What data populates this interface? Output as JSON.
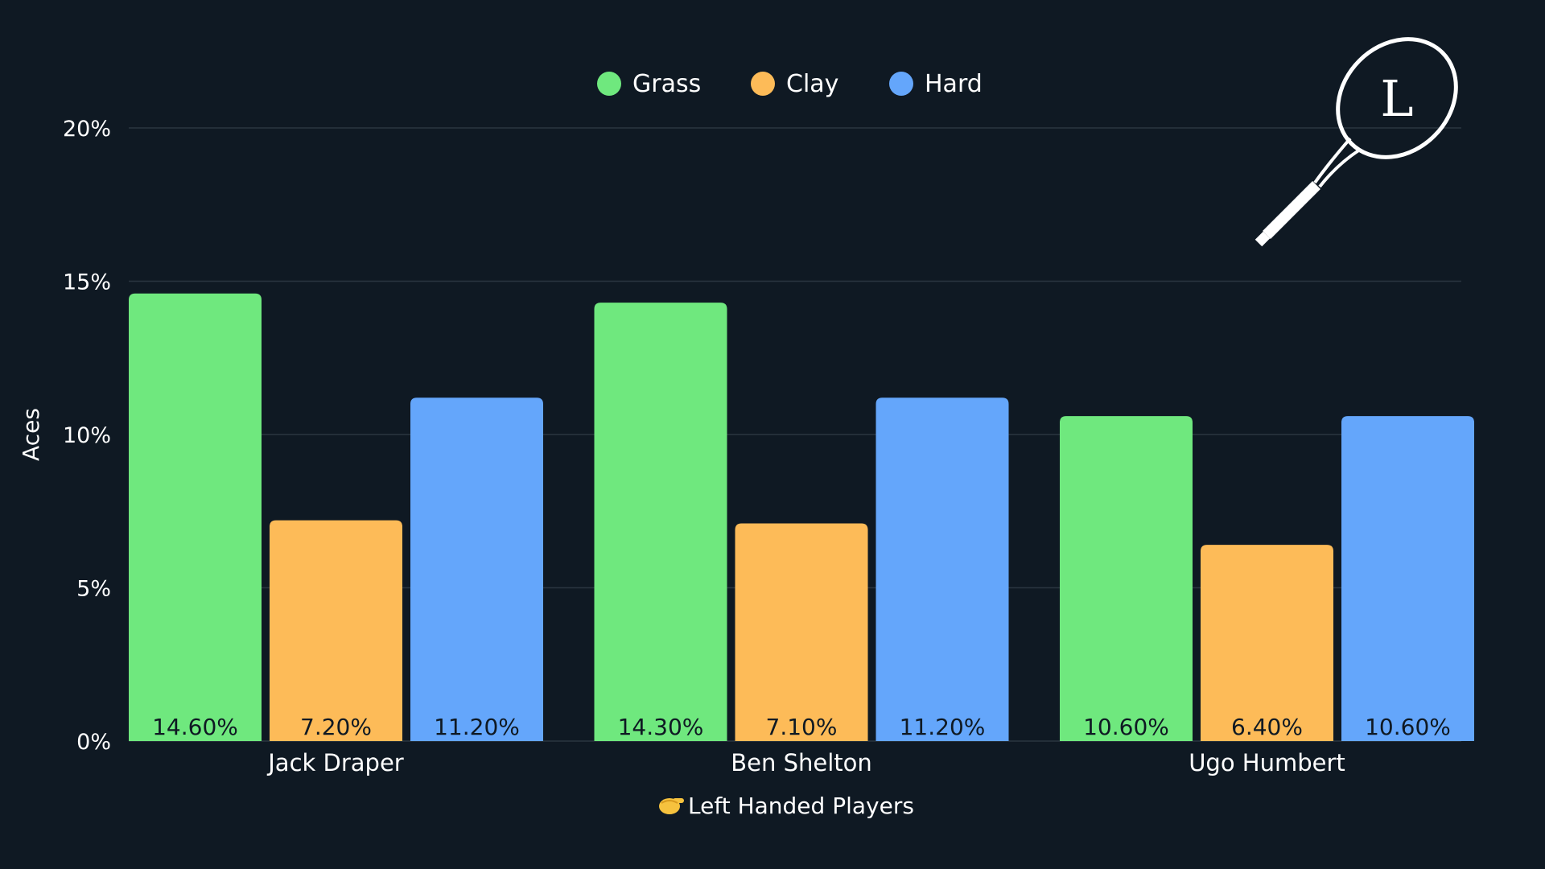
{
  "chart_data": {
    "type": "bar",
    "title": "",
    "xlabel": "Left Handed Players",
    "xlabel_icon": "hand-pointing-icon",
    "ylabel": "Aces",
    "ylim": [
      0,
      20
    ],
    "y_ticks": [
      {
        "value": 0,
        "label": "0%"
      },
      {
        "value": 5,
        "label": "5%"
      },
      {
        "value": 10,
        "label": "10%"
      },
      {
        "value": 15,
        "label": "15%"
      },
      {
        "value": 20,
        "label": "20%"
      }
    ],
    "grid": true,
    "legend_position": "top-center",
    "categories": [
      "Jack Draper",
      "Ben Shelton",
      "Ugo Humbert"
    ],
    "series": [
      {
        "name": "Grass",
        "color": "#6fe87e",
        "values": [
          14.6,
          14.3,
          10.6
        ],
        "labels": [
          "14.60%",
          "14.30%",
          "10.60%"
        ]
      },
      {
        "name": "Clay",
        "color": "#fdbb58",
        "values": [
          7.2,
          7.1,
          6.4
        ],
        "labels": [
          "7.20%",
          "7.10%",
          "6.40%"
        ]
      },
      {
        "name": "Hard",
        "color": "#64a6fb",
        "values": [
          11.2,
          11.2,
          10.6
        ],
        "labels": [
          "11.20%",
          "11.20%",
          "10.60%"
        ]
      }
    ]
  },
  "logo": {
    "icon": "tennis-racket-icon",
    "letter": "L"
  },
  "colors": {
    "background": "#0f1923",
    "grid": "#2a3540"
  }
}
